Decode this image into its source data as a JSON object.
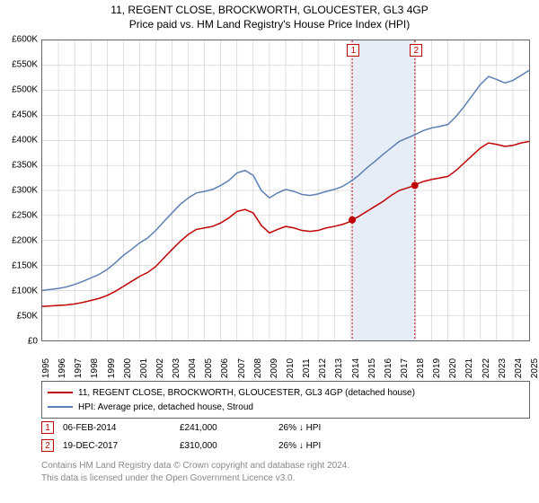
{
  "title": "11, REGENT CLOSE, BROCKWORTH, GLOUCESTER, GL3 4GP",
  "subtitle": "Price paid vs. HM Land Registry's House Price Index (HPI)",
  "chart": {
    "type": "line",
    "background_color": "#ffffff",
    "grid_color": "#bfbfbf",
    "border_color": "#666666",
    "x_years": [
      1995,
      1996,
      1997,
      1998,
      1999,
      2000,
      2001,
      2002,
      2003,
      2004,
      2005,
      2006,
      2007,
      2008,
      2009,
      2010,
      2011,
      2012,
      2013,
      2014,
      2015,
      2016,
      2017,
      2018,
      2019,
      2020,
      2021,
      2022,
      2023,
      2024,
      2025
    ],
    "y_min": 0,
    "y_max": 600000,
    "y_tick_step": 50000,
    "y_tick_labels": [
      "£0",
      "£50K",
      "£100K",
      "£150K",
      "£200K",
      "£250K",
      "£300K",
      "£350K",
      "£400K",
      "£450K",
      "£500K",
      "£550K",
      "£600K"
    ],
    "highlight": {
      "x_start": 2014.1,
      "x_end": 2017.96,
      "band_color": "#e6edf7",
      "border_color": "#c00000"
    },
    "markers": [
      {
        "id": "1",
        "x": 2014.1,
        "y": 241000,
        "label_y_offset": -12
      },
      {
        "id": "2",
        "x": 2017.96,
        "y": 310000,
        "label_y_offset": -12
      }
    ],
    "series": [
      {
        "name": "property_price",
        "label": "11, REGENT CLOSE, BROCKWORTH, GLOUCESTER, GL3 4GP (detached house)",
        "color": "#c00000",
        "line_width": 1.5,
        "data": [
          [
            1995,
            68000
          ],
          [
            1995.5,
            69000
          ],
          [
            1996,
            70000
          ],
          [
            1996.5,
            71000
          ],
          [
            1997,
            73000
          ],
          [
            1997.5,
            76000
          ],
          [
            1998,
            80000
          ],
          [
            1998.5,
            84000
          ],
          [
            1999,
            90000
          ],
          [
            1999.5,
            98000
          ],
          [
            2000,
            108000
          ],
          [
            2000.5,
            118000
          ],
          [
            2001,
            128000
          ],
          [
            2001.5,
            136000
          ],
          [
            2002,
            148000
          ],
          [
            2002.5,
            165000
          ],
          [
            2003,
            182000
          ],
          [
            2003.5,
            198000
          ],
          [
            2004,
            212000
          ],
          [
            2004.5,
            222000
          ],
          [
            2005,
            225000
          ],
          [
            2005.5,
            228000
          ],
          [
            2006,
            235000
          ],
          [
            2006.5,
            245000
          ],
          [
            2007,
            258000
          ],
          [
            2007.5,
            262000
          ],
          [
            2008,
            255000
          ],
          [
            2008.5,
            230000
          ],
          [
            2009,
            215000
          ],
          [
            2009.5,
            222000
          ],
          [
            2010,
            228000
          ],
          [
            2010.5,
            225000
          ],
          [
            2011,
            220000
          ],
          [
            2011.5,
            218000
          ],
          [
            2012,
            220000
          ],
          [
            2012.5,
            225000
          ],
          [
            2013,
            228000
          ],
          [
            2013.5,
            232000
          ],
          [
            2014,
            238000
          ],
          [
            2014.1,
            241000
          ],
          [
            2014.5,
            248000
          ],
          [
            2015,
            258000
          ],
          [
            2015.5,
            268000
          ],
          [
            2016,
            278000
          ],
          [
            2016.5,
            290000
          ],
          [
            2017,
            300000
          ],
          [
            2017.5,
            305000
          ],
          [
            2017.96,
            310000
          ],
          [
            2018,
            312000
          ],
          [
            2018.5,
            318000
          ],
          [
            2019,
            322000
          ],
          [
            2019.5,
            325000
          ],
          [
            2020,
            328000
          ],
          [
            2020.5,
            340000
          ],
          [
            2021,
            355000
          ],
          [
            2021.5,
            370000
          ],
          [
            2022,
            385000
          ],
          [
            2022.5,
            395000
          ],
          [
            2023,
            392000
          ],
          [
            2023.5,
            388000
          ],
          [
            2024,
            390000
          ],
          [
            2024.5,
            395000
          ],
          [
            2025,
            398000
          ]
        ]
      },
      {
        "name": "hpi",
        "label": "HPI: Average price, detached house, Stroud",
        "color": "#5b7fb4",
        "line_width": 1.5,
        "data": [
          [
            1995,
            100000
          ],
          [
            1995.5,
            102000
          ],
          [
            1996,
            104000
          ],
          [
            1996.5,
            107000
          ],
          [
            1997,
            112000
          ],
          [
            1997.5,
            118000
          ],
          [
            1998,
            125000
          ],
          [
            1998.5,
            132000
          ],
          [
            1999,
            142000
          ],
          [
            1999.5,
            155000
          ],
          [
            2000,
            170000
          ],
          [
            2000.5,
            182000
          ],
          [
            2001,
            195000
          ],
          [
            2001.5,
            205000
          ],
          [
            2002,
            220000
          ],
          [
            2002.5,
            238000
          ],
          [
            2003,
            255000
          ],
          [
            2003.5,
            272000
          ],
          [
            2004,
            285000
          ],
          [
            2004.5,
            295000
          ],
          [
            2005,
            298000
          ],
          [
            2005.5,
            302000
          ],
          [
            2006,
            310000
          ],
          [
            2006.5,
            320000
          ],
          [
            2007,
            335000
          ],
          [
            2007.5,
            340000
          ],
          [
            2008,
            330000
          ],
          [
            2008.5,
            300000
          ],
          [
            2009,
            285000
          ],
          [
            2009.5,
            295000
          ],
          [
            2010,
            302000
          ],
          [
            2010.5,
            298000
          ],
          [
            2011,
            292000
          ],
          [
            2011.5,
            290000
          ],
          [
            2012,
            293000
          ],
          [
            2012.5,
            298000
          ],
          [
            2013,
            302000
          ],
          [
            2013.5,
            308000
          ],
          [
            2014,
            318000
          ],
          [
            2014.5,
            330000
          ],
          [
            2015,
            345000
          ],
          [
            2015.5,
            358000
          ],
          [
            2016,
            372000
          ],
          [
            2016.5,
            385000
          ],
          [
            2017,
            398000
          ],
          [
            2017.5,
            405000
          ],
          [
            2018,
            412000
          ],
          [
            2018.5,
            420000
          ],
          [
            2019,
            425000
          ],
          [
            2019.5,
            428000
          ],
          [
            2020,
            432000
          ],
          [
            2020.5,
            448000
          ],
          [
            2021,
            468000
          ],
          [
            2021.5,
            490000
          ],
          [
            2022,
            512000
          ],
          [
            2022.5,
            528000
          ],
          [
            2023,
            522000
          ],
          [
            2023.5,
            515000
          ],
          [
            2024,
            520000
          ],
          [
            2024.5,
            530000
          ],
          [
            2025,
            540000
          ]
        ]
      }
    ],
    "sale_dot_color": "#c00000",
    "sale_dot_radius": 4
  },
  "legend": [
    {
      "color": "#c00000",
      "label": "11, REGENT CLOSE, BROCKWORTH, GLOUCESTER, GL3 4GP (detached house)"
    },
    {
      "color": "#5b7fb4",
      "label": "HPI: Average price, detached house, Stroud"
    }
  ],
  "sales": [
    {
      "id": "1",
      "date": "06-FEB-2014",
      "price": "£241,000",
      "delta": "26% ↓ HPI"
    },
    {
      "id": "2",
      "date": "19-DEC-2017",
      "price": "£310,000",
      "delta": "26% ↓ HPI"
    }
  ],
  "footer": {
    "line1": "Contains HM Land Registry data © Crown copyright and database right 2024.",
    "line2": "This data is licensed under the Open Government Licence v3.0."
  }
}
